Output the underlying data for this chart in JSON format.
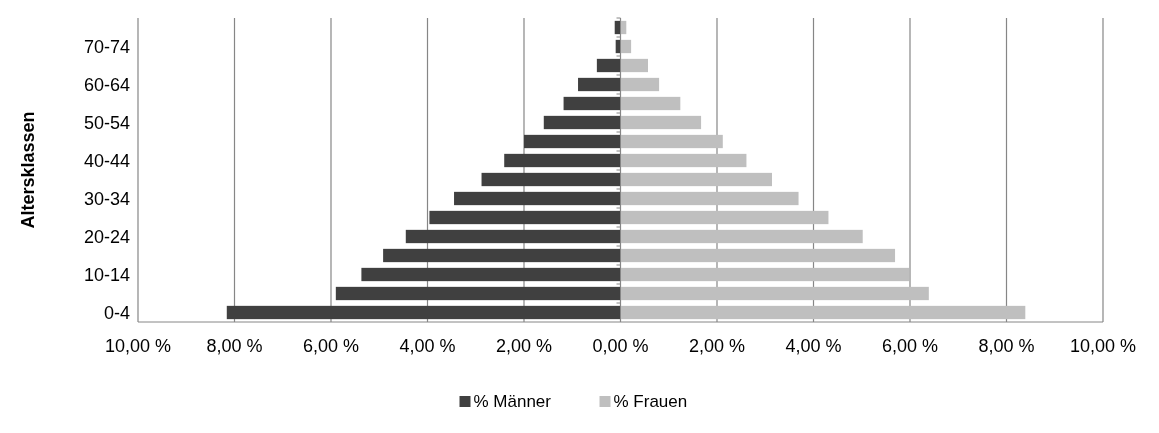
{
  "chart_data": {
    "type": "bar",
    "orientation": "horizontal",
    "stacked": true,
    "ylabel": "Altersklassen",
    "categories": [
      null,
      "70-74",
      null,
      "60-64",
      null,
      "50-54",
      null,
      "40-44",
      null,
      "30-34",
      null,
      "20-24",
      null,
      "10-14",
      null,
      "0-4"
    ],
    "series": [
      {
        "name": "% Männer",
        "color": "#404040",
        "values": [
          -0.12,
          -0.1,
          -0.49,
          -0.88,
          -1.18,
          -1.59,
          -2.0,
          -2.41,
          -2.88,
          -3.45,
          -3.96,
          -4.45,
          -4.92,
          -5.37,
          -5.9,
          -8.16
        ]
      },
      {
        "name": "% Frauen",
        "color": "#bfbfbf",
        "values": [
          0.12,
          0.22,
          0.57,
          0.8,
          1.24,
          1.67,
          2.12,
          2.61,
          3.14,
          3.69,
          4.31,
          5.02,
          5.69,
          5.98,
          6.39,
          8.39
        ]
      }
    ],
    "xlim": [
      -10,
      10
    ],
    "xticks": [
      {
        "value": -10,
        "label": "10,00 %"
      },
      {
        "value": -8,
        "label": "8,00 %"
      },
      {
        "value": -6,
        "label": "6,00 %"
      },
      {
        "value": -4,
        "label": "4,00 %"
      },
      {
        "value": -2,
        "label": "2,00 %"
      },
      {
        "value": 0,
        "label": "0,00 %"
      },
      {
        "value": 2,
        "label": "2,00 %"
      },
      {
        "value": 4,
        "label": "4,00 %"
      },
      {
        "value": 6,
        "label": "6,00 %"
      },
      {
        "value": 8,
        "label": "8,00 %"
      },
      {
        "value": 10,
        "label": "10,00 %"
      }
    ],
    "grid": "x",
    "legend": "bottom"
  }
}
